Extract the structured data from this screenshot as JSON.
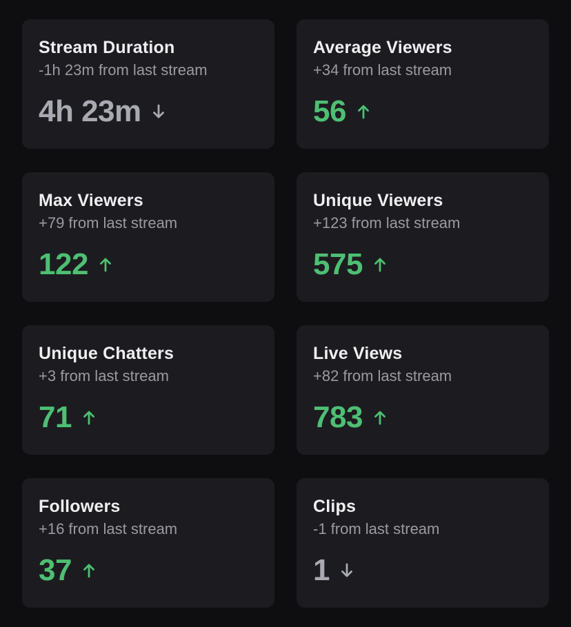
{
  "colors": {
    "background": "#0e0e10",
    "card": "#1c1c20",
    "up": "#4ebf73",
    "down": "#a9a9b2"
  },
  "stats": [
    {
      "title": "Stream Duration",
      "subtitle": "-1h 23m from last stream",
      "value": "4h 23m",
      "trend": "down",
      "icon": "arrow-down-icon"
    },
    {
      "title": "Average Viewers",
      "subtitle": "+34 from last stream",
      "value": "56",
      "trend": "up",
      "icon": "arrow-up-icon"
    },
    {
      "title": "Max Viewers",
      "subtitle": "+79 from last stream",
      "value": "122",
      "trend": "up",
      "icon": "arrow-up-icon"
    },
    {
      "title": "Unique Viewers",
      "subtitle": "+123 from last stream",
      "value": "575",
      "trend": "up",
      "icon": "arrow-up-icon"
    },
    {
      "title": "Unique Chatters",
      "subtitle": "+3 from last stream",
      "value": "71",
      "trend": "up",
      "icon": "arrow-up-icon"
    },
    {
      "title": "Live Views",
      "subtitle": "+82 from last stream",
      "value": "783",
      "trend": "up",
      "icon": "arrow-up-icon"
    },
    {
      "title": "Followers",
      "subtitle": "+16 from last stream",
      "value": "37",
      "trend": "up",
      "icon": "arrow-up-icon"
    },
    {
      "title": "Clips",
      "subtitle": "-1 from last stream",
      "value": "1",
      "trend": "down",
      "icon": "arrow-down-icon"
    }
  ]
}
